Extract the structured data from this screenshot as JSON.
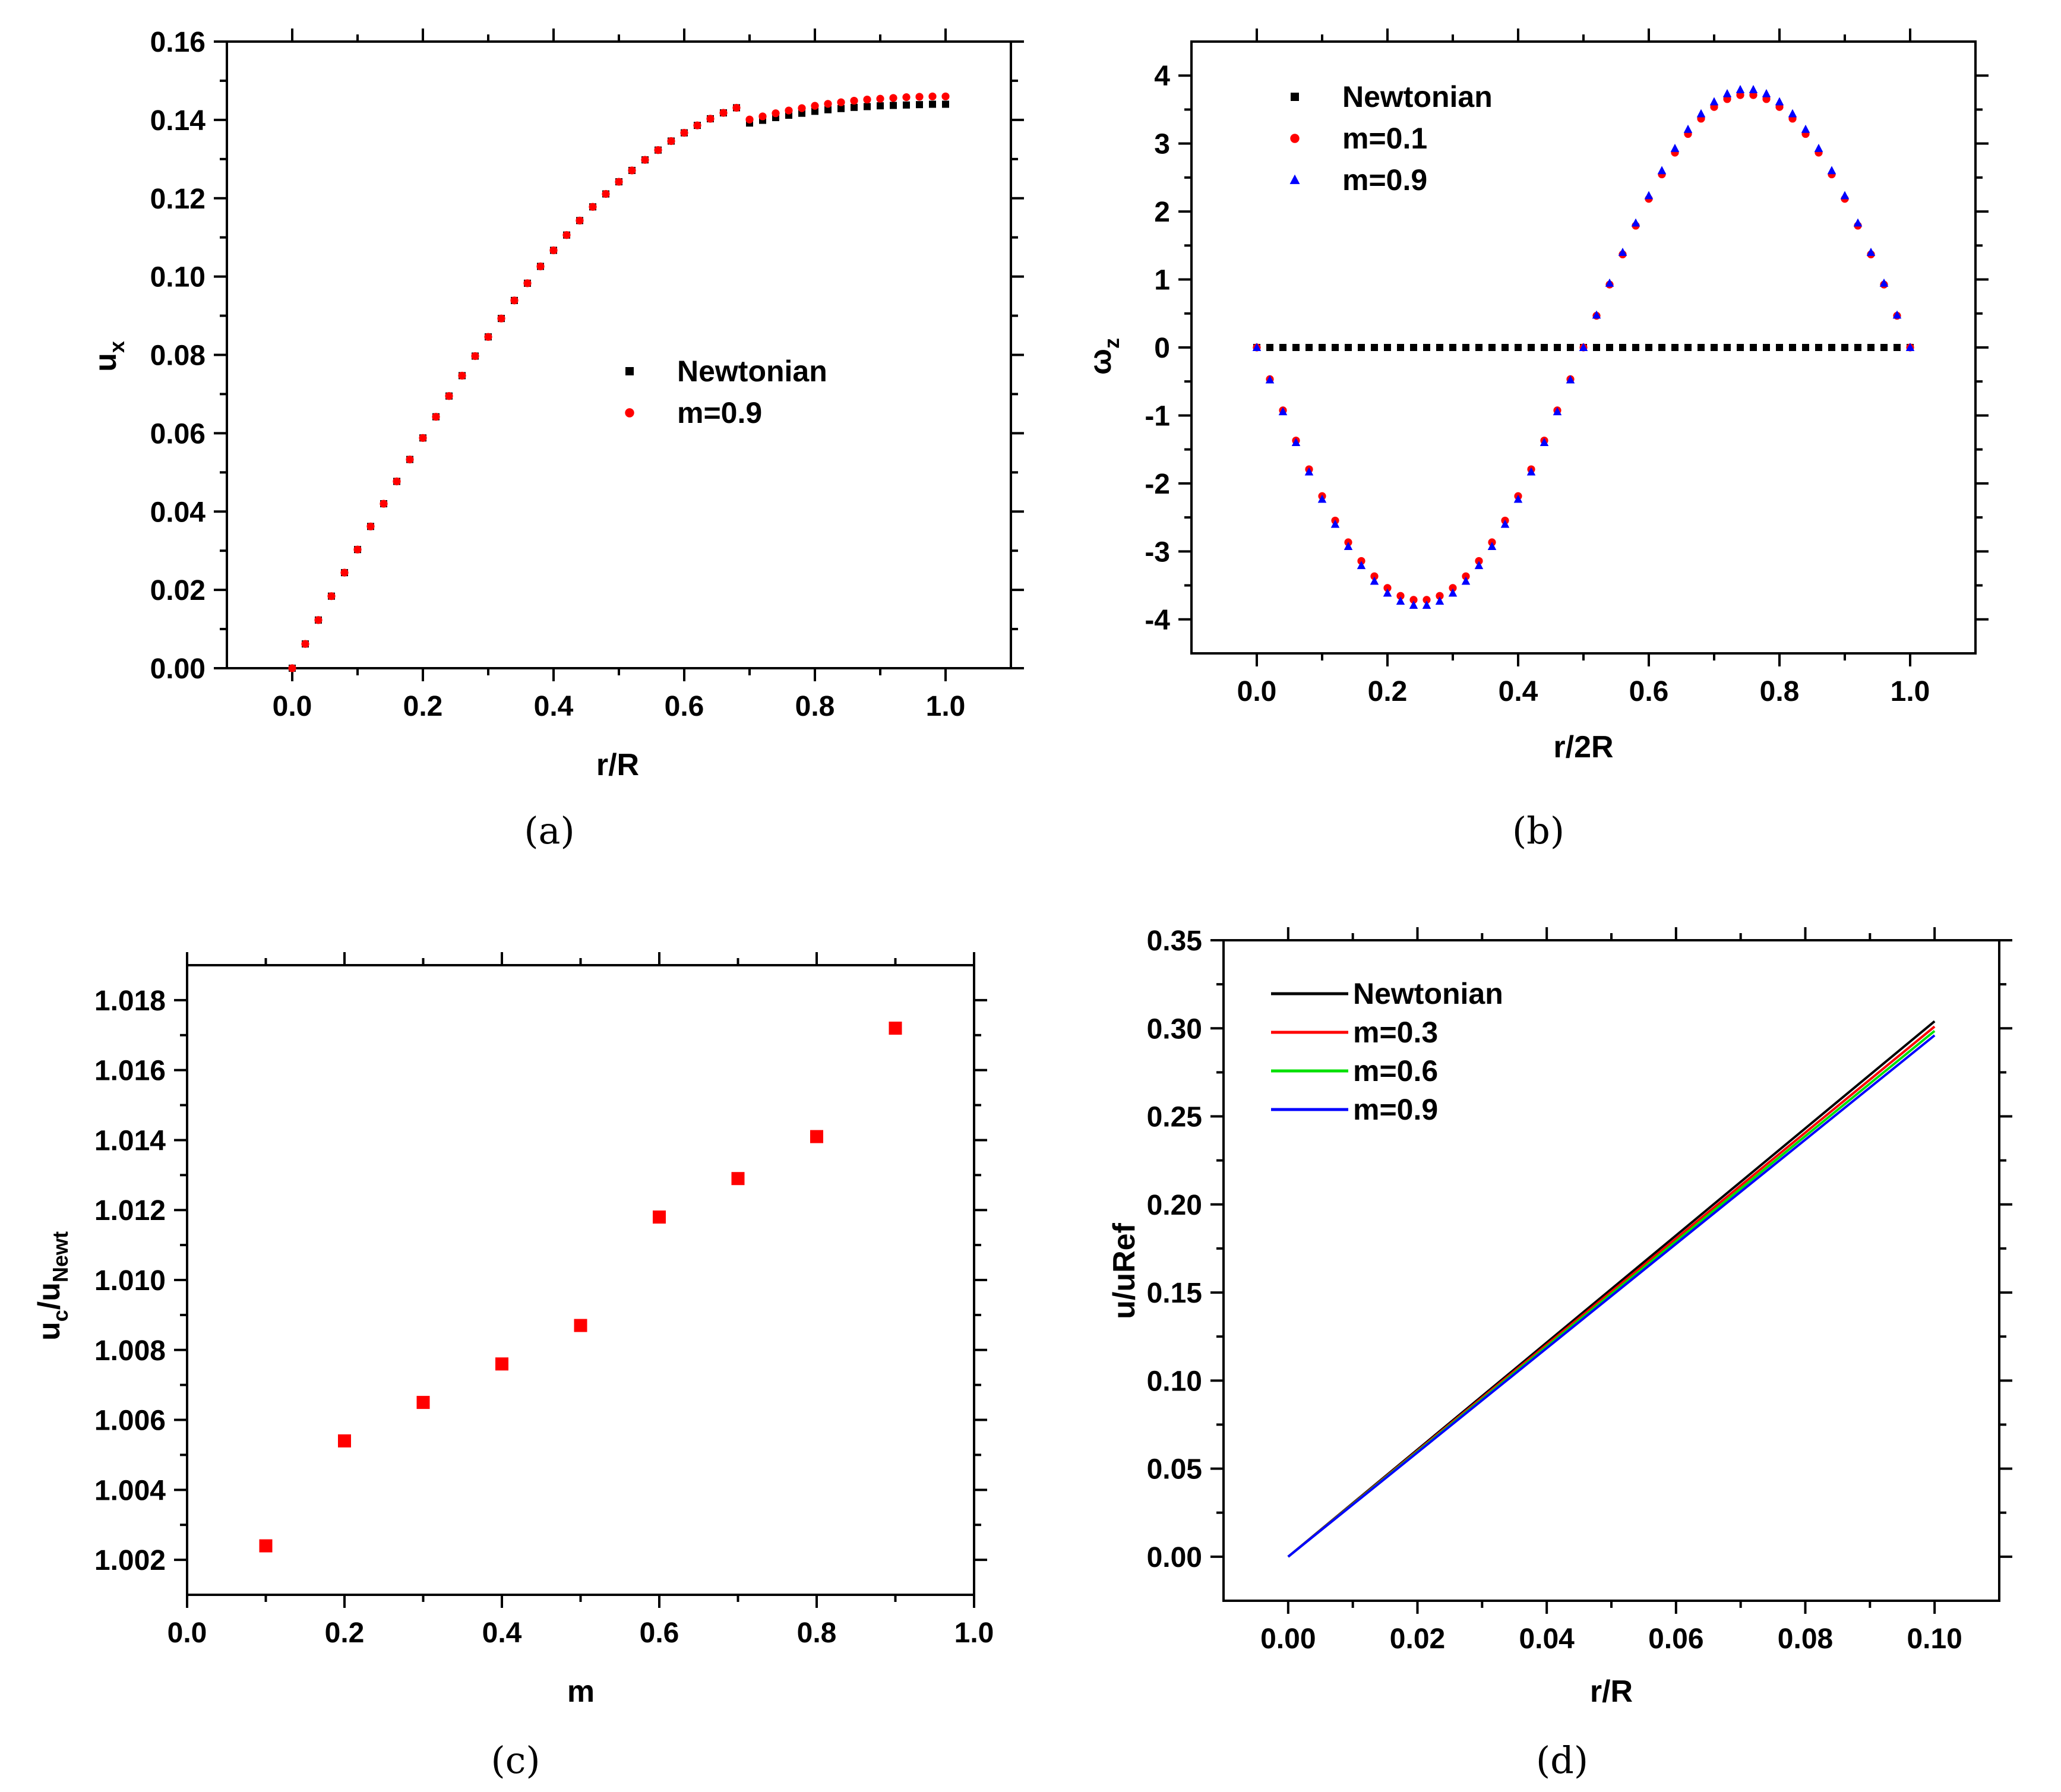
{
  "chart_data": [
    {
      "id": "a",
      "caption": "(a)",
      "type": "scatter",
      "xlabel": "r/R",
      "ylabel": "u",
      "ylabel_sub": "x",
      "xlim": [
        -0.1,
        1.1
      ],
      "ylim": [
        0.0,
        0.16
      ],
      "xticks": [
        0.0,
        0.2,
        0.4,
        0.6,
        0.8,
        1.0
      ],
      "xtick_labels": [
        "0.0",
        "0.2",
        "0.4",
        "0.6",
        "0.8",
        "1.0"
      ],
      "yticks": [
        0.0,
        0.02,
        0.04,
        0.06,
        0.08,
        0.1,
        0.12,
        0.14,
        0.16
      ],
      "ytick_labels": [
        "0.00",
        "0.02",
        "0.04",
        "0.06",
        "0.08",
        "0.10",
        "0.12",
        "0.14",
        "0.16"
      ],
      "grid": false,
      "legend_position": "center-right",
      "series": [
        {
          "name": "Newtonian",
          "marker": "square",
          "color": "#000000",
          "x": [
            0.0,
            0.02,
            0.04,
            0.06,
            0.08,
            0.1,
            0.12,
            0.14,
            0.16,
            0.18,
            0.2,
            0.22,
            0.24,
            0.26,
            0.28,
            0.3,
            0.32,
            0.34,
            0.36,
            0.38,
            0.4,
            0.42,
            0.44,
            0.46,
            0.48,
            0.5,
            0.52,
            0.54,
            0.56,
            0.58,
            0.6,
            0.62,
            0.64,
            0.66,
            0.68,
            0.7,
            0.72,
            0.74,
            0.76,
            0.78,
            0.8,
            0.82,
            0.84,
            0.86,
            0.88,
            0.9,
            0.92,
            0.94,
            0.96,
            0.98,
            1.0
          ],
          "y": [
            0.0,
            0.0062,
            0.0123,
            0.0184,
            0.0244,
            0.0303,
            0.0362,
            0.042,
            0.0477,
            0.0533,
            0.0588,
            0.0642,
            0.0695,
            0.0747,
            0.0797,
            0.0846,
            0.0893,
            0.0939,
            0.0983,
            0.1026,
            0.1067,
            0.1106,
            0.1143,
            0.1178,
            0.1211,
            0.1242,
            0.1271,
            0.1298,
            0.1323,
            0.1346,
            0.1367,
            0.1386,
            0.1403,
            0.1418,
            0.1431,
            0.1392,
            0.1399,
            0.1406,
            0.1412,
            0.1417,
            0.1422,
            0.1426,
            0.1429,
            0.1432,
            0.1434,
            0.1436,
            0.1437,
            0.1438,
            0.1439,
            0.144,
            0.144
          ]
        },
        {
          "name": "m=0.9",
          "marker": "circle",
          "color": "#ff0000",
          "x": [
            0.0,
            0.02,
            0.04,
            0.06,
            0.08,
            0.1,
            0.12,
            0.14,
            0.16,
            0.18,
            0.2,
            0.22,
            0.24,
            0.26,
            0.28,
            0.3,
            0.32,
            0.34,
            0.36,
            0.38,
            0.4,
            0.42,
            0.44,
            0.46,
            0.48,
            0.5,
            0.52,
            0.54,
            0.56,
            0.58,
            0.6,
            0.62,
            0.64,
            0.66,
            0.68,
            0.7,
            0.72,
            0.74,
            0.76,
            0.78,
            0.8,
            0.82,
            0.84,
            0.86,
            0.88,
            0.9,
            0.92,
            0.94,
            0.96,
            0.98,
            1.0
          ],
          "y": [
            0.0,
            0.0062,
            0.0123,
            0.0184,
            0.0244,
            0.0303,
            0.0362,
            0.042,
            0.0477,
            0.0533,
            0.0588,
            0.0642,
            0.0695,
            0.0747,
            0.0797,
            0.0846,
            0.0893,
            0.0939,
            0.0983,
            0.1026,
            0.1067,
            0.1106,
            0.1143,
            0.1178,
            0.1211,
            0.1242,
            0.1271,
            0.1298,
            0.1323,
            0.1346,
            0.1367,
            0.1386,
            0.1403,
            0.1418,
            0.1431,
            0.1401,
            0.1409,
            0.1417,
            0.1424,
            0.143,
            0.1436,
            0.1441,
            0.1445,
            0.1449,
            0.1452,
            0.1454,
            0.1456,
            0.1458,
            0.1459,
            0.146,
            0.146
          ]
        }
      ]
    },
    {
      "id": "b",
      "caption": "(b)",
      "type": "scatter",
      "xlabel": "r/2R",
      "ylabel": "ω",
      "ylabel_sub": "z",
      "xlim": [
        -0.1,
        1.1
      ],
      "ylim": [
        -4.5,
        4.5
      ],
      "xticks": [
        0.0,
        0.2,
        0.4,
        0.6,
        0.8,
        1.0
      ],
      "xtick_labels": [
        "0.0",
        "0.2",
        "0.4",
        "0.6",
        "0.8",
        "1.0"
      ],
      "yticks": [
        -4,
        -3,
        -2,
        -1,
        0,
        1,
        2,
        3,
        4
      ],
      "ytick_labels": [
        "-4",
        "-3",
        "-2",
        "-1",
        "0",
        "1",
        "2",
        "3",
        "4"
      ],
      "grid": false,
      "legend_position": "top-left",
      "series": [
        {
          "name": "Newtonian",
          "marker": "square",
          "color": "#000000",
          "amplitude": 0.0
        },
        {
          "name": "m=0.1",
          "marker": "circle",
          "color": "#ff0000",
          "amplitude": 3.72
        },
        {
          "name": "m=0.9",
          "marker": "triangle",
          "color": "#0000ff",
          "amplitude": 3.8
        }
      ],
      "x_samples": [
        0.0,
        0.02,
        0.04,
        0.06,
        0.08,
        0.1,
        0.12,
        0.14,
        0.16,
        0.18,
        0.2,
        0.22,
        0.24,
        0.26,
        0.28,
        0.3,
        0.32,
        0.34,
        0.36,
        0.38,
        0.4,
        0.42,
        0.44,
        0.46,
        0.48,
        0.5,
        0.52,
        0.54,
        0.56,
        0.58,
        0.6,
        0.62,
        0.64,
        0.66,
        0.68,
        0.7,
        0.72,
        0.74,
        0.76,
        0.78,
        0.8,
        0.82,
        0.84,
        0.86,
        0.88,
        0.9,
        0.92,
        0.94,
        0.96,
        0.98,
        1.0
      ],
      "function": "y = -amplitude * sin(2*pi*x)"
    },
    {
      "id": "c",
      "caption": "(c)",
      "type": "scatter",
      "xlabel": "m",
      "ylabel": "u",
      "ylabel_sub": "c",
      "ylabel_tail": "/u",
      "ylabel_tail_sub": "Newt",
      "xlim": [
        0.0,
        1.0
      ],
      "ylim": [
        1.001,
        1.019
      ],
      "xticks": [
        0.0,
        0.2,
        0.4,
        0.6,
        0.8,
        1.0
      ],
      "xtick_labels": [
        "0.0",
        "0.2",
        "0.4",
        "0.6",
        "0.8",
        "1.0"
      ],
      "yticks": [
        1.002,
        1.004,
        1.006,
        1.008,
        1.01,
        1.012,
        1.014,
        1.016,
        1.018
      ],
      "ytick_labels": [
        "1.002",
        "1.004",
        "1.006",
        "1.008",
        "1.010",
        "1.012",
        "1.014",
        "1.016",
        "1.018"
      ],
      "grid": false,
      "series": [
        {
          "name": "u_c/u_Newt",
          "marker": "square",
          "color": "#ff0000",
          "x": [
            0.1,
            0.2,
            0.3,
            0.4,
            0.5,
            0.6,
            0.7,
            0.8,
            0.9
          ],
          "y": [
            1.0024,
            1.0054,
            1.0065,
            1.0076,
            1.0087,
            1.0118,
            1.0129,
            1.0141,
            1.0172
          ]
        }
      ]
    },
    {
      "id": "d",
      "caption": "(d)",
      "type": "line",
      "xlabel": "r/R",
      "ylabel": "u/uRef",
      "xlim": [
        -0.01,
        0.11
      ],
      "ylim": [
        -0.025,
        0.35
      ],
      "xticks": [
        0.0,
        0.02,
        0.04,
        0.06,
        0.08,
        0.1
      ],
      "xtick_labels": [
        "0.00",
        "0.02",
        "0.04",
        "0.06",
        "0.08",
        "0.10"
      ],
      "yticks": [
        0.0,
        0.05,
        0.1,
        0.15,
        0.2,
        0.25,
        0.3,
        0.35
      ],
      "ytick_labels": [
        "0.00",
        "0.05",
        "0.10",
        "0.15",
        "0.20",
        "0.25",
        "0.30",
        "0.35"
      ],
      "grid": false,
      "legend_position": "top-left",
      "series": [
        {
          "name": "Newtonian",
          "color": "#000000",
          "x": [
            0.0,
            0.1
          ],
          "y": [
            0.0,
            0.304
          ]
        },
        {
          "name": "m=0.3",
          "color": "#ff0000",
          "x": [
            0.0,
            0.1
          ],
          "y": [
            0.0,
            0.301
          ]
        },
        {
          "name": "m=0.6",
          "color": "#00e000",
          "x": [
            0.0,
            0.1
          ],
          "y": [
            0.0,
            0.2985
          ]
        },
        {
          "name": "m=0.9",
          "color": "#0000ff",
          "x": [
            0.0,
            0.1
          ],
          "y": [
            0.0,
            0.296
          ]
        }
      ]
    }
  ]
}
